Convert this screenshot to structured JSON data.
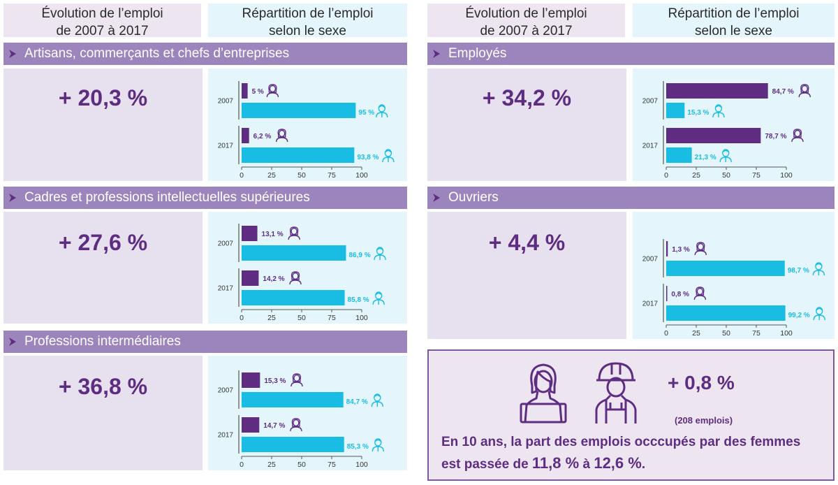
{
  "headers": {
    "left_col": "Évolution de l’emploi",
    "left_col_2": "de 2007 à 2017",
    "right_col": "Répartition de l’emploi",
    "right_col_2": "selon le sexe"
  },
  "colors": {
    "women": "#5e2d82",
    "men": "#19bde3",
    "banner": "#9c85bd",
    "accent": "#5e2d82"
  },
  "icons": {
    "women": "woman-icon",
    "men": "man-icon",
    "chevron": "chevron-right-icon"
  },
  "categories": [
    {
      "title": "Artisans, commerçants et chefs d’entreprises",
      "evolution": "+ 20,3 %"
    },
    {
      "title": "Cadres et professions intellectuelles supérieures",
      "evolution": "+ 27,6 %"
    },
    {
      "title": "Professions intermédiaires",
      "evolution": "+ 36,8 %"
    },
    {
      "title": "Employés",
      "evolution": "+ 34,2 %"
    },
    {
      "title": "Ouvriers",
      "evolution": "+ 4,4 %"
    }
  ],
  "summary": {
    "change": "+ 0,8 %",
    "jobs": "(208 emplois)",
    "line1": "En 10 ans, la part des emplois occcupés par des femmes",
    "line2_prefix": "est passée de ",
    "from": "11,8 %",
    "middle": " à ",
    "to": "12,6 %",
    "suffix": "."
  },
  "chart_data": [
    {
      "type": "bar",
      "categories": [
        "2007",
        "2017"
      ],
      "xlim": [
        0,
        100
      ],
      "xticks": [
        0,
        25,
        50,
        75,
        100
      ],
      "series": [
        {
          "values": [
            5,
            6.2
          ],
          "labels": [
            "5 %",
            "6,2 %"
          ]
        },
        {
          "values": [
            95,
            93.8
          ],
          "labels": [
            "95 %",
            "93,8 %"
          ]
        }
      ]
    },
    {
      "type": "bar",
      "categories": [
        "2007",
        "2017"
      ],
      "xlim": [
        0,
        100
      ],
      "xticks": [
        0,
        25,
        50,
        75,
        100
      ],
      "series": [
        {
          "values": [
            13.1,
            14.2
          ],
          "labels": [
            "13,1 %",
            "14,2 %"
          ]
        },
        {
          "values": [
            86.9,
            85.8
          ],
          "labels": [
            "86,9 %",
            "85,8 %"
          ]
        }
      ]
    },
    {
      "type": "bar",
      "categories": [
        "2007",
        "2017"
      ],
      "xlim": [
        0,
        100
      ],
      "xticks": [
        0,
        25,
        50,
        75,
        100
      ],
      "series": [
        {
          "values": [
            15.3,
            14.7
          ],
          "labels": [
            "15,3 %",
            "14,7 %"
          ]
        },
        {
          "values": [
            84.7,
            85.3
          ],
          "labels": [
            "84,7 %",
            "85,3 %"
          ]
        }
      ]
    },
    {
      "type": "bar",
      "categories": [
        "2007",
        "2017"
      ],
      "xlim": [
        0,
        100
      ],
      "xticks": [
        0,
        25,
        50,
        75,
        100
      ],
      "series": [
        {
          "values": [
            84.7,
            78.7
          ],
          "labels": [
            "84,7 %",
            "78,7 %"
          ]
        },
        {
          "values": [
            15.3,
            21.3
          ],
          "labels": [
            "15,3 %",
            "21,3 %"
          ]
        }
      ]
    },
    {
      "type": "bar",
      "categories": [
        "2007",
        "2017"
      ],
      "xlim": [
        0,
        100
      ],
      "xticks": [
        0,
        25,
        50,
        75,
        100
      ],
      "series": [
        {
          "values": [
            1.3,
            0.8
          ],
          "labels": [
            "1,3 %",
            "0,8 %"
          ]
        },
        {
          "values": [
            98.7,
            99.2
          ],
          "labels": [
            "98,7 %",
            "99,2 %"
          ]
        }
      ]
    }
  ]
}
